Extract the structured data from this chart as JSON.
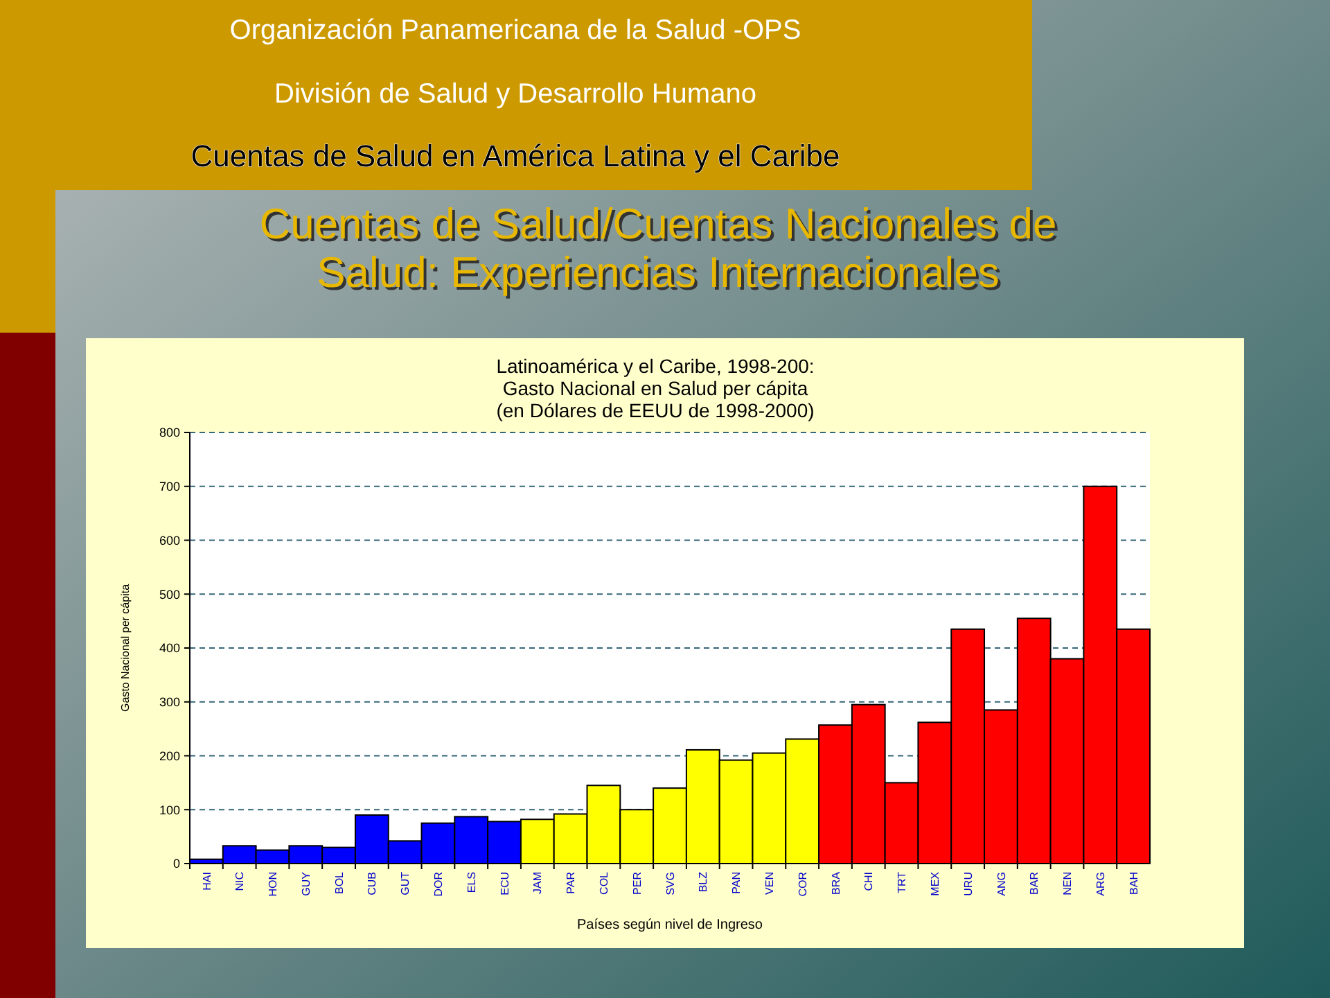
{
  "chart_data": {
    "type": "bar",
    "title": "Cuentas de Salud/Cuentas Nacionales de\nSalud: Experiencias Internacionales",
    "subtitle": "Latinoamérica y el Caribe, 1998-200:\nGasto Nacional en Salud per cápita\n(en Dólares de EEUU de 1998-2000)",
    "annotations": [
      "Organización Panamericana de la Salud -OPS",
      "División de Salud y Desarrollo Humano",
      "Cuentas de Salud en América Latina y el Caribe"
    ],
    "xlabel": "Países según nivel de Ingreso",
    "ylabel": "Gasto Nacional per cápita",
    "categories": [
      "HAI",
      "NIC",
      "HON",
      "GUY",
      "BOL",
      "CUB",
      "GUT",
      "DOR",
      "ELS",
      "ECU",
      "JAM",
      "PAR",
      "COL",
      "PER",
      "SVG",
      "BLZ",
      "PAN",
      "VEN",
      "COR",
      "BRA",
      "CHI",
      "TRT",
      "MEX",
      "URU",
      "ANG",
      "BAR",
      "NEN",
      "ARG",
      "BAH"
    ],
    "values": [
      8,
      33,
      25,
      33,
      30,
      90,
      42,
      75,
      87,
      78,
      82,
      92,
      145,
      100,
      140,
      211,
      192,
      205,
      231,
      257,
      295,
      150,
      262,
      435,
      285,
      455,
      380,
      700,
      435
    ],
    "colors": [
      "#0000ff",
      "#0000ff",
      "#0000ff",
      "#0000ff",
      "#0000ff",
      "#0000ff",
      "#0000ff",
      "#0000ff",
      "#0000ff",
      "#0000ff",
      "#ffff00",
      "#ffff00",
      "#ffff00",
      "#ffff00",
      "#ffff00",
      "#ffff00",
      "#ffff00",
      "#ffff00",
      "#ffff00",
      "#ff0000",
      "#ff0000",
      "#ff0000",
      "#ff0000",
      "#ff0000",
      "#ff0000",
      "#ff0000",
      "#ff0000",
      "#ff0000",
      "#ff0000"
    ],
    "ylim": [
      0,
      800
    ],
    "yticks": [
      0,
      100,
      200,
      300,
      400,
      500,
      600,
      700,
      800
    ],
    "grid": "y"
  }
}
